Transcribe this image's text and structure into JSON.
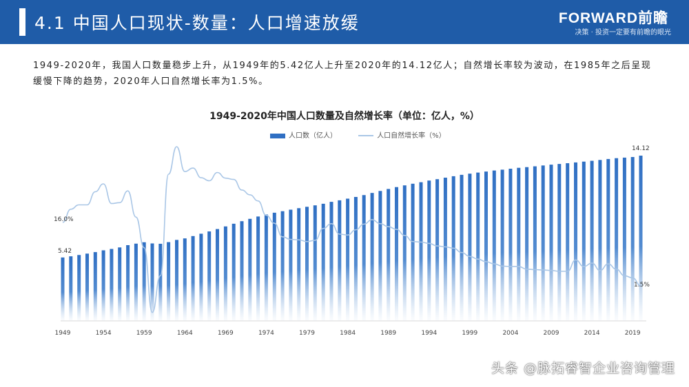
{
  "header": {
    "title": "4.1 中国人口现状-数量：人口增速放缓",
    "brand": "FORWARD前瞻",
    "slogan": "决策 · 投资一定要有前瞻的眼光"
  },
  "intro_text": "1949-2020年，我国人口数量稳步上升，从1949年的5.42亿人上升至2020年的14.12亿人；自然增长率较为波动，在1985年之后呈现缓慢下降的趋势，2020年人口自然增长率为1.5%。",
  "footer_caption": "头条 @脉拓睿智企业咨询管理",
  "colors": {
    "header": "#1f5ca8",
    "bar": "#2f6fc3",
    "line": "#a9c6e6"
  },
  "chart_data": {
    "type": "bar",
    "title": "1949-2020年中国人口数量及自然增长率（单位：亿人，%）",
    "legend_placement": "top",
    "grid": false,
    "x_tick_labels": [
      "1949",
      "1954",
      "1959",
      "1964",
      "1969",
      "1974",
      "1979",
      "1984",
      "1989",
      "1994",
      "1999",
      "2004",
      "2009",
      "2014",
      "2019"
    ],
    "x": [
      1949,
      1950,
      1951,
      1952,
      1953,
      1954,
      1955,
      1956,
      1957,
      1958,
      1959,
      1960,
      1961,
      1962,
      1963,
      1964,
      1965,
      1966,
      1967,
      1968,
      1969,
      1970,
      1971,
      1972,
      1973,
      1974,
      1975,
      1976,
      1977,
      1978,
      1979,
      1980,
      1981,
      1982,
      1983,
      1984,
      1985,
      1986,
      1987,
      1988,
      1989,
      1990,
      1991,
      1992,
      1993,
      1994,
      1995,
      1996,
      1997,
      1998,
      1999,
      2000,
      2001,
      2002,
      2003,
      2004,
      2005,
      2006,
      2007,
      2008,
      2009,
      2010,
      2011,
      2012,
      2013,
      2014,
      2015,
      2016,
      2017,
      2018,
      2019,
      2020
    ],
    "series": [
      {
        "name": "人口数（亿人）",
        "kind": "bar",
        "values": [
          5.42,
          5.52,
          5.63,
          5.75,
          5.88,
          6.03,
          6.15,
          6.28,
          6.47,
          6.6,
          6.72,
          6.62,
          6.59,
          6.73,
          6.92,
          7.05,
          7.25,
          7.45,
          7.64,
          7.85,
          8.07,
          8.3,
          8.52,
          8.72,
          8.92,
          9.09,
          9.24,
          9.37,
          9.5,
          9.63,
          9.75,
          9.87,
          10.01,
          10.17,
          10.3,
          10.44,
          10.59,
          10.75,
          10.93,
          11.1,
          11.27,
          11.43,
          11.58,
          11.72,
          11.85,
          11.99,
          12.11,
          12.24,
          12.36,
          12.48,
          12.58,
          12.67,
          12.76,
          12.85,
          12.92,
          13.0,
          13.08,
          13.14,
          13.21,
          13.28,
          13.35,
          13.41,
          13.47,
          13.54,
          13.61,
          13.68,
          13.75,
          13.83,
          13.9,
          13.95,
          14.0,
          14.12
        ],
        "first_label": "5.42",
        "last_label": "14.12"
      },
      {
        "name": "人口自然增长率（%）",
        "kind": "line",
        "values": [
          16.0,
          19.0,
          20.0,
          20.0,
          23.0,
          24.8,
          20.3,
          20.5,
          23.2,
          17.2,
          10.2,
          -4.6,
          3.8,
          27.0,
          33.3,
          27.6,
          28.4,
          26.2,
          25.5,
          27.4,
          26.1,
          25.8,
          23.4,
          22.3,
          20.9,
          17.6,
          15.8,
          12.7,
          12.1,
          12.0,
          11.6,
          11.9,
          14.6,
          15.7,
          13.3,
          13.1,
          14.3,
          15.6,
          16.6,
          15.7,
          15.0,
          14.4,
          13.0,
          11.6,
          11.5,
          11.2,
          10.6,
          10.4,
          10.1,
          9.1,
          8.2,
          7.6,
          7.0,
          6.5,
          6.0,
          5.9,
          5.9,
          5.3,
          5.2,
          5.1,
          5.0,
          4.8,
          4.8,
          7.4,
          5.9,
          6.7,
          5.0,
          6.5,
          5.3,
          3.8,
          3.3,
          1.5
        ],
        "first_label": "16.0%",
        "last_label": "1.5%"
      }
    ]
  }
}
